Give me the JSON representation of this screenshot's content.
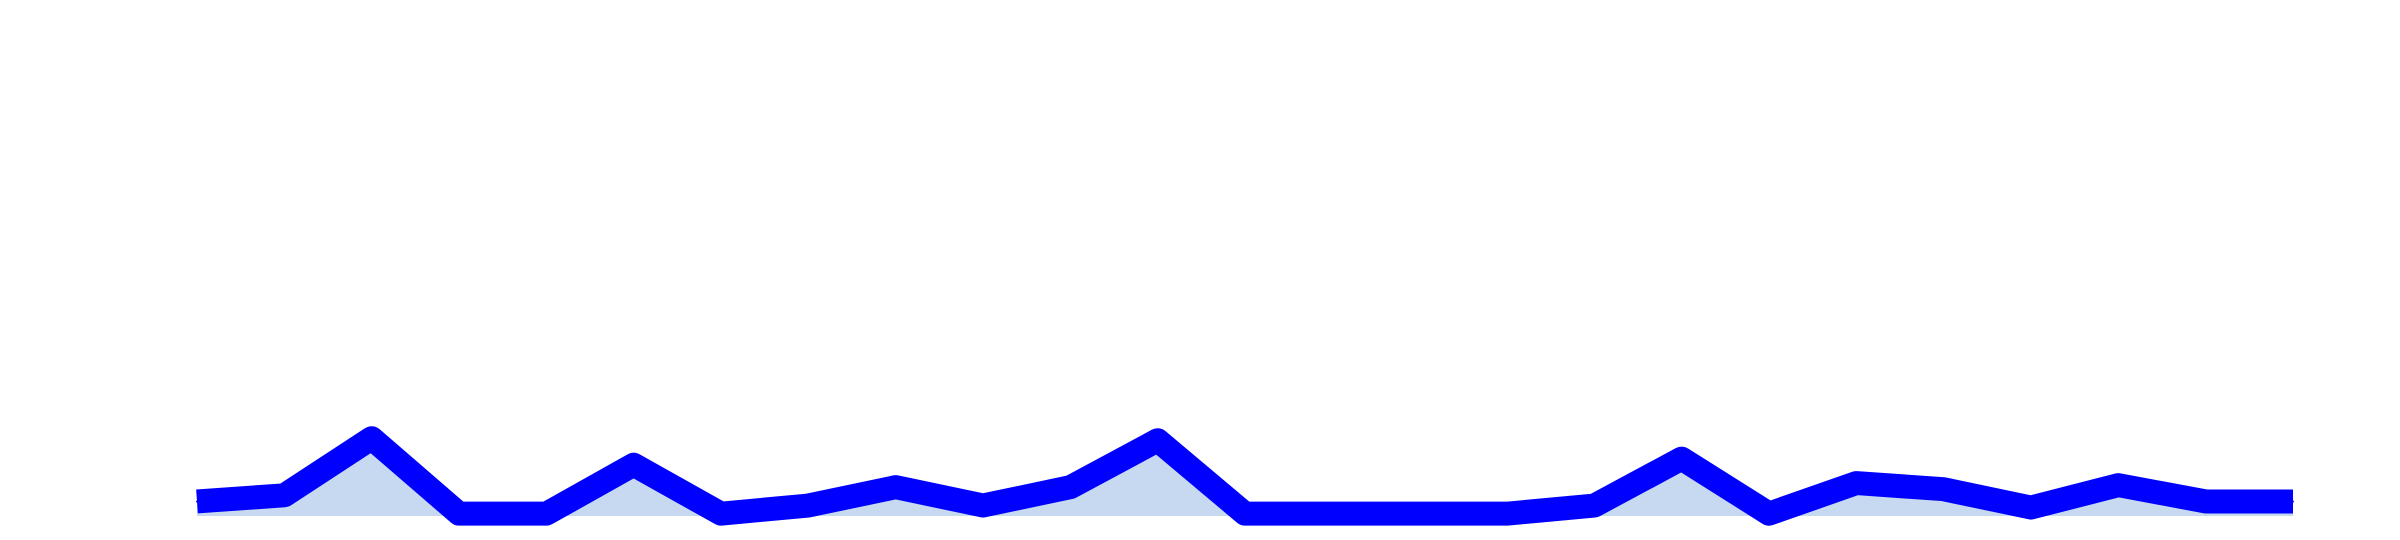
{
  "chart_data": {
    "type": "area",
    "title": "",
    "xlabel": "",
    "ylabel": "",
    "grid": false,
    "legend": "none",
    "colors": {
      "line": "#0000ff",
      "fill": "#c6d9f1"
    },
    "x": [
      1,
      2,
      3,
      4,
      5,
      6,
      7,
      8,
      9,
      10,
      11,
      12,
      13,
      14,
      15,
      16,
      17,
      18,
      19,
      20,
      21,
      22,
      23,
      24,
      25
    ],
    "series": [
      {
        "values": [
          1.4,
          1.7,
          4.5,
          0.8,
          0.8,
          3.2,
          0.8,
          1.2,
          2.1,
          1.2,
          2.1,
          4.4,
          0.8,
          0.8,
          0.8,
          0.8,
          1.2,
          3.5,
          0.8,
          2.3,
          2.0,
          1.1,
          2.2,
          1.4,
          1.4
        ]
      }
    ],
    "xlim": [
      1,
      25
    ],
    "ylim": [
      0,
      25
    ]
  }
}
